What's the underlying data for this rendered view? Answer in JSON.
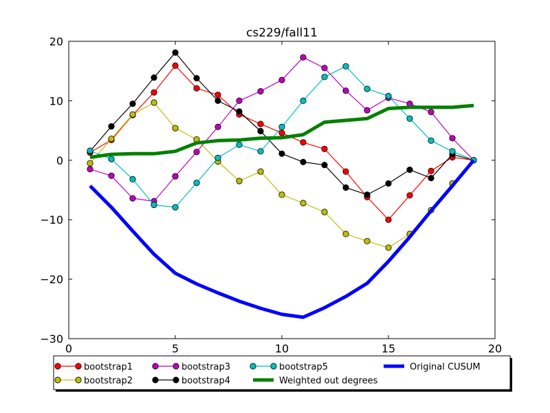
{
  "chart_data": {
    "type": "line",
    "title": "cs229/fall11",
    "xlabel": "",
    "ylabel": "",
    "xlim": [
      0,
      20
    ],
    "ylim": [
      -30,
      20
    ],
    "x_ticks": [
      0,
      5,
      10,
      15,
      20
    ],
    "y_ticks": [
      -30,
      -20,
      -10,
      0,
      10,
      20
    ],
    "x_tick_labels": [
      "0",
      "5",
      "10",
      "15",
      "20"
    ],
    "y_tick_labels": [
      "−30",
      "−20",
      "−10",
      "0",
      "10",
      "20"
    ],
    "grid": false,
    "legend_position": "below",
    "series": [
      {
        "name": "bootstrap1",
        "color": "#ff0000",
        "marker": "circle",
        "line_width": "thin",
        "x": [
          1,
          2,
          3,
          4,
          5,
          6,
          7,
          8,
          9,
          10,
          11,
          12,
          13,
          14,
          15,
          16,
          17,
          18,
          19
        ],
        "y": [
          1.3,
          3.4,
          7.6,
          11.4,
          15.9,
          12.1,
          11.0,
          7.7,
          6.1,
          4.6,
          3.0,
          1.9,
          -1.9,
          -6.2,
          -10.0,
          -5.9,
          -1.8,
          0.5,
          0.0
        ]
      },
      {
        "name": "bootstrap2",
        "color": "#bfbf00",
        "marker": "circle",
        "line_width": "thin",
        "x": [
          1,
          2,
          3,
          4,
          5,
          6,
          7,
          8,
          9,
          10,
          11,
          12,
          13,
          14,
          15,
          16,
          17,
          18,
          19
        ],
        "y": [
          -0.5,
          3.6,
          7.7,
          9.7,
          5.4,
          3.5,
          -0.2,
          -3.5,
          -1.9,
          -5.8,
          -7.2,
          -8.7,
          -12.4,
          -13.6,
          -14.7,
          -12.4,
          -8.4,
          -3.9,
          0.0
        ]
      },
      {
        "name": "bootstrap3",
        "color": "#bf00bf",
        "marker": "circle",
        "line_width": "thin",
        "x": [
          1,
          2,
          3,
          4,
          5,
          6,
          7,
          8,
          9,
          10,
          11,
          12,
          13,
          14,
          15,
          16,
          17,
          18,
          19
        ],
        "y": [
          -1.5,
          -2.6,
          -6.4,
          -6.9,
          -2.7,
          1.4,
          5.6,
          10.0,
          11.6,
          13.5,
          17.3,
          15.5,
          11.7,
          8.4,
          10.5,
          9.5,
          8.1,
          3.7,
          0.0
        ]
      },
      {
        "name": "bootstrap4",
        "color": "#000000",
        "marker": "circle",
        "line_width": "thin",
        "x": [
          1,
          2,
          3,
          4,
          5,
          6,
          7,
          8,
          9,
          10,
          11,
          12,
          13,
          14,
          15,
          16,
          17,
          18,
          19
        ],
        "y": [
          1.5,
          5.7,
          9.5,
          13.9,
          18.1,
          13.8,
          10.0,
          8.2,
          4.9,
          1.1,
          -0.3,
          -0.8,
          -4.6,
          -5.8,
          -3.9,
          -1.6,
          -3.0,
          1.0,
          0.0
        ]
      },
      {
        "name": "bootstrap5",
        "color": "#00bfbf",
        "marker": "circle",
        "line_width": "thin",
        "x": [
          1,
          2,
          3,
          4,
          5,
          6,
          7,
          8,
          9,
          10,
          11,
          12,
          13,
          14,
          15,
          16,
          17,
          18,
          19
        ],
        "y": [
          1.6,
          0.2,
          -3.2,
          -7.5,
          -7.9,
          -3.8,
          0.4,
          2.6,
          1.5,
          5.6,
          10.0,
          14.0,
          15.8,
          12.0,
          10.8,
          7.0,
          3.3,
          1.5,
          0.0
        ]
      },
      {
        "name": "Weighted out degrees",
        "color": "#008000",
        "marker": "none",
        "line_width": "thick",
        "x": [
          1,
          2,
          3,
          4,
          5,
          6,
          7,
          8,
          9,
          10,
          11,
          12,
          13,
          14,
          15,
          16,
          17,
          18,
          19
        ],
        "y": [
          0.5,
          1.0,
          1.1,
          1.1,
          1.5,
          2.9,
          3.3,
          3.4,
          3.7,
          3.8,
          4.3,
          6.4,
          6.7,
          7.0,
          8.7,
          8.9,
          8.9,
          8.9,
          9.2
        ]
      },
      {
        "name": "Original CUSUM",
        "color": "#0000ff",
        "marker": "none",
        "line_width": "thick",
        "x": [
          1,
          2,
          3,
          4,
          5,
          6,
          7,
          8,
          9,
          10,
          11,
          12,
          13,
          14,
          15,
          16,
          17,
          18,
          19
        ],
        "y": [
          -4.3,
          -7.9,
          -11.9,
          -15.8,
          -19.0,
          -20.8,
          -22.3,
          -23.7,
          -24.9,
          -25.9,
          -26.4,
          -24.8,
          -22.9,
          -20.7,
          -17.0,
          -12.9,
          -8.5,
          -4.3,
          0.0
        ]
      }
    ]
  }
}
